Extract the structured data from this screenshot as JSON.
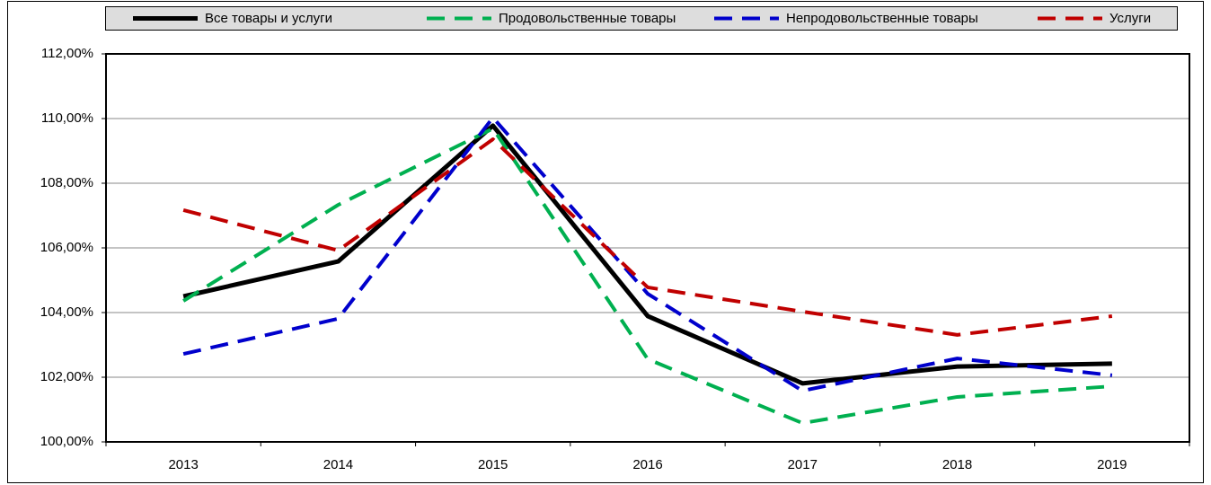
{
  "chart_data": {
    "type": "line",
    "categories": [
      "2013",
      "2014",
      "2015",
      "2016",
      "2017",
      "2018",
      "2019"
    ],
    "series": [
      {
        "name": "Все товары и услуги",
        "color": "#000000",
        "dashed": false,
        "values": [
          104.5,
          105.58,
          109.78,
          103.89,
          101.81,
          102.33,
          102.42
        ]
      },
      {
        "name": "Продовольственные товары",
        "color": "#00b050",
        "dashed": true,
        "values": [
          104.36,
          107.33,
          109.69,
          102.56,
          100.58,
          101.39,
          101.72
        ]
      },
      {
        "name": "Непродовольственные товары",
        "color": "#0000cc",
        "dashed": true,
        "values": [
          102.72,
          103.81,
          110.03,
          104.58,
          101.58,
          102.58,
          102.06
        ]
      },
      {
        "name": "Услуги",
        "color": "#c00000",
        "dashed": true,
        "values": [
          107.17,
          105.92,
          109.36,
          104.78,
          104.03,
          103.31,
          103.89
        ]
      }
    ],
    "ylim": [
      100,
      112
    ],
    "yticks": [
      {
        "value": 100,
        "label": "100,00%"
      },
      {
        "value": 102,
        "label": "102,00%"
      },
      {
        "value": 104,
        "label": "104,00%"
      },
      {
        "value": 106,
        "label": "106,00%"
      },
      {
        "value": 108,
        "label": "108,00%"
      },
      {
        "value": 110,
        "label": "110,00%"
      },
      {
        "value": 112,
        "label": "112,00%"
      }
    ],
    "grid": true,
    "legend": "top"
  }
}
